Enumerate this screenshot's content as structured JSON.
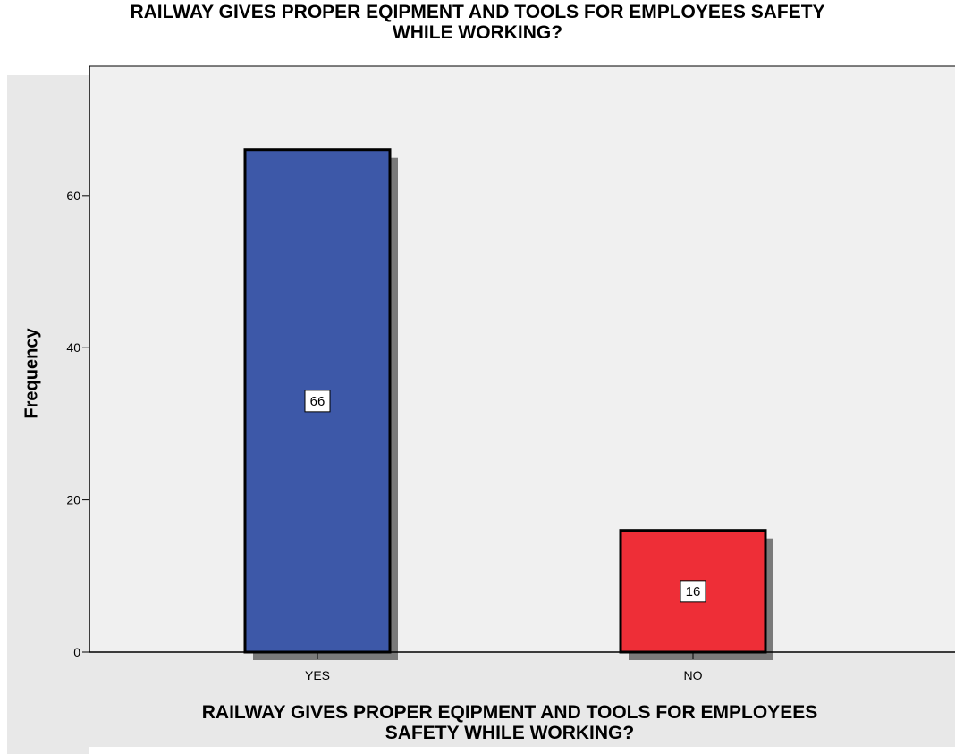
{
  "chart_data": {
    "type": "bar",
    "title_lines": [
      "RAILWAY GIVES PROPER EQIPMENT AND TOOLS FOR EMPLOYEES SAFETY",
      "WHILE WORKING?"
    ],
    "xlabel_lines": [
      "RAILWAY GIVES PROPER EQIPMENT AND TOOLS FOR EMPLOYEES",
      "SAFETY WHILE WORKING?"
    ],
    "ylabel": "Frequency",
    "categories": [
      "YES",
      "NO"
    ],
    "values": [
      66,
      16
    ],
    "data_labels": [
      "66",
      "16"
    ],
    "bar_colors": [
      "#3d58a8",
      "#ee2e37"
    ],
    "ylim": [
      0,
      77
    ],
    "yticks": [
      0,
      20,
      40,
      60
    ],
    "grid": false,
    "legend": "none",
    "background_color": "#f0f0f0"
  }
}
